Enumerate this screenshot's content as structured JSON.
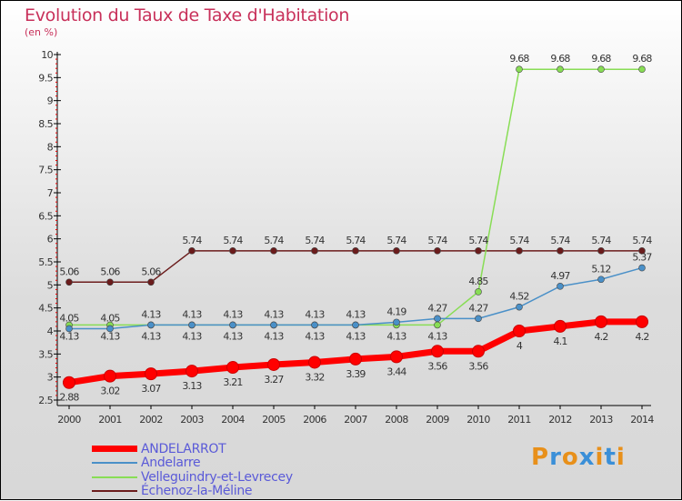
{
  "chart_data": {
    "type": "line",
    "title": "Evolution du Taux de Taxe d'Habitation",
    "subtitle": "(en %)",
    "xlabel": "",
    "ylabel": "",
    "x": [
      "2000",
      "2001",
      "2002",
      "2003",
      "2004",
      "2005",
      "2006",
      "2007",
      "2008",
      "2009",
      "2010",
      "2011",
      "2012",
      "2013",
      "2014"
    ],
    "ylim": [
      2.5,
      10
    ],
    "yticks": [
      "2.5",
      "3",
      "3.5",
      "4",
      "4.5",
      "5",
      "5.5",
      "6",
      "6.5",
      "7",
      "7.5",
      "8",
      "8.5",
      "9",
      "9.5",
      "10"
    ],
    "legend_position": "bottom-left",
    "series": [
      {
        "name": "ANDELARROT",
        "color": "#ff0000",
        "values": [
          2.88,
          3.02,
          3.07,
          3.13,
          3.21,
          3.27,
          3.32,
          3.39,
          3.44,
          3.56,
          3.56,
          4,
          4.1,
          4.2,
          4.2
        ],
        "labels": [
          "2.88",
          "3.02",
          "3.07",
          "3.13",
          "3.21",
          "3.27",
          "3.32",
          "3.39",
          "3.44",
          "3.56",
          "3.56",
          "4",
          "4.1",
          "4.2",
          "4.2"
        ]
      },
      {
        "name": "Andelarre",
        "color": "#4a90c8",
        "values": [
          4.05,
          4.05,
          4.13,
          4.13,
          4.13,
          4.13,
          4.13,
          4.13,
          4.19,
          4.27,
          4.27,
          4.52,
          4.97,
          5.12,
          5.37
        ],
        "labels": [
          "4.05",
          "4.05",
          "4.13",
          "4.13",
          "4.13",
          "4.13",
          "4.13",
          "4.13",
          "4.19",
          "4.27",
          "4.27",
          "4.52",
          "4.97",
          "5.12",
          "5.37"
        ]
      },
      {
        "name": "Velleguindry-et-Levrecey",
        "color": "#88dd55",
        "values": [
          4.13,
          4.13,
          4.13,
          4.13,
          4.13,
          4.13,
          4.13,
          4.13,
          4.13,
          4.13,
          4.85,
          9.68,
          9.68,
          9.68,
          9.68
        ],
        "labels": [
          "4.13",
          "4.13",
          "4.13",
          "4.13",
          "4.13",
          "4.13",
          "4.13",
          "4.13",
          "4.13",
          "4.13",
          "4.85",
          "9.68",
          "9.68",
          "9.68",
          "9.68"
        ]
      },
      {
        "name": "Échenoz-la-Méline",
        "color": "#6b1c1c",
        "values": [
          5.06,
          5.06,
          5.06,
          5.74,
          5.74,
          5.74,
          5.74,
          5.74,
          5.74,
          5.74,
          5.74,
          5.74,
          5.74,
          5.74,
          5.74
        ],
        "labels": [
          "5.06",
          "5.06",
          "5.06",
          "5.74",
          "5.74",
          "5.74",
          "5.74",
          "5.74",
          "5.74",
          "5.74",
          "5.74",
          "5.74",
          "5.74",
          "5.74",
          "5.74"
        ]
      }
    ]
  },
  "logo": {
    "text": "Proxiti",
    "colors": [
      "#e8901a",
      "#3a8fd8",
      "#e8901a",
      "#3a8fd8",
      "#e8901a",
      "#3a8fd8",
      "#e8901a"
    ]
  }
}
